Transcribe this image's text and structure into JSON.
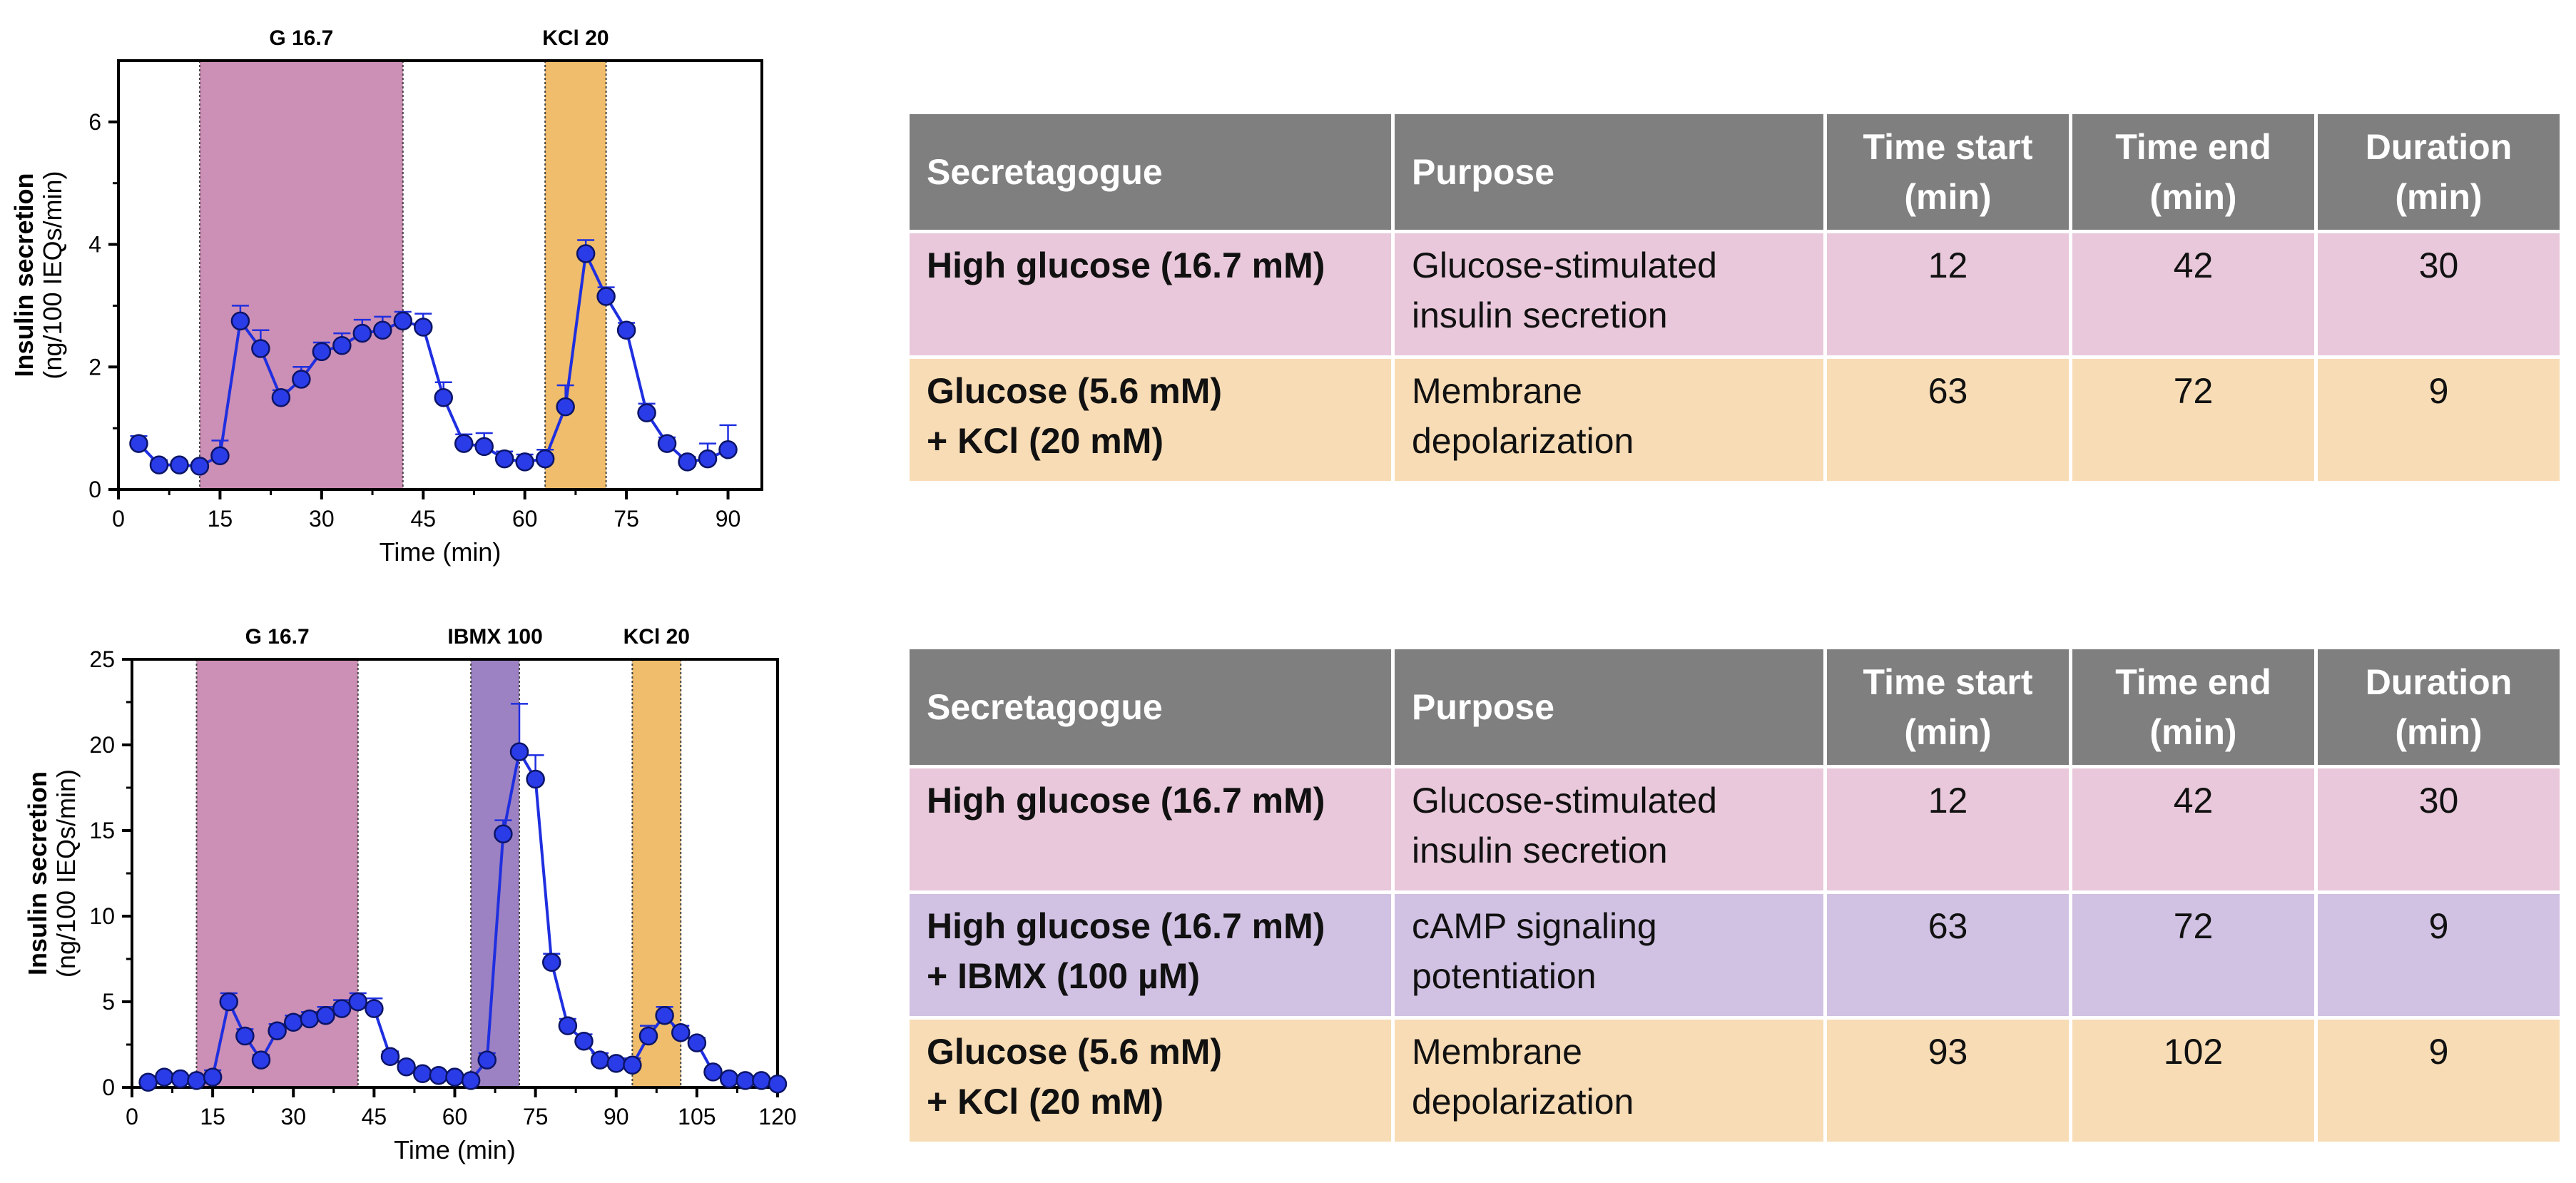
{
  "colors": {
    "glucose_band": "#cc8fb5",
    "kcl_band": "#efbd6b",
    "ibmx_band": "#9c82c3",
    "series": "#1f2fe0",
    "series_marker": "#2a3be8",
    "table_header": "#7f7f7f",
    "row_glucose": "#e8c8da",
    "row_ibmx": "#d1c1e3",
    "row_kcl": "#f8dcb5"
  },
  "chart_data": [
    {
      "type": "line",
      "xlabel": "Time (min)",
      "ylabel": "Insulin secretion",
      "ylabel_sub": "(ng/100 IEQs/min)",
      "xlim": [
        0,
        95
      ],
      "ylim": [
        0,
        7
      ],
      "xticks": [
        "0",
        "15",
        "30",
        "45",
        "60",
        "75",
        "90"
      ],
      "yticks": [
        "0",
        "2",
        "4",
        "6"
      ],
      "bands": [
        {
          "label": "G 16.7",
          "start": 12,
          "end": 42,
          "color": "#cc8fb5"
        },
        {
          "label": "KCl 20",
          "start": 63,
          "end": 72,
          "color": "#efbd6b"
        }
      ],
      "series": [
        {
          "x": [
            3,
            6,
            9,
            12,
            15,
            18,
            21,
            24,
            27,
            30,
            33,
            36,
            39,
            42,
            45,
            48,
            51,
            54,
            57,
            60,
            63,
            66,
            69,
            72,
            75,
            78,
            81,
            84,
            87,
            90
          ],
          "y": [
            0.75,
            0.4,
            0.4,
            0.38,
            0.55,
            2.75,
            2.3,
            1.5,
            1.8,
            2.25,
            2.35,
            2.55,
            2.6,
            2.75,
            2.65,
            1.5,
            0.75,
            0.7,
            0.5,
            0.45,
            0.5,
            1.35,
            3.85,
            3.15,
            2.6,
            1.25,
            0.75,
            0.45,
            0.5,
            0.65
          ],
          "err": [
            0.12,
            0.08,
            0.06,
            0.06,
            0.25,
            0.25,
            0.3,
            0.12,
            0.2,
            0.15,
            0.2,
            0.22,
            0.22,
            0.15,
            0.22,
            0.25,
            0.15,
            0.22,
            0.12,
            0.12,
            0.15,
            0.35,
            0.22,
            0.15,
            0.12,
            0.15,
            0.1,
            0.08,
            0.25,
            0.4
          ]
        }
      ]
    },
    {
      "type": "line",
      "xlabel": "Time (min)",
      "ylabel": "Insulin secretion",
      "ylabel_sub": "(ng/100 IEQs/min)",
      "xlim": [
        0,
        120
      ],
      "ylim": [
        0,
        25
      ],
      "xticks": [
        "0",
        "15",
        "30",
        "45",
        "60",
        "75",
        "90",
        "105",
        "120"
      ],
      "yticks": [
        "0",
        "5",
        "10",
        "15",
        "20",
        "25"
      ],
      "bands": [
        {
          "label": "G 16.7",
          "start": 12,
          "end": 42,
          "color": "#cc8fb5"
        },
        {
          "label": "IBMX 100",
          "start": 63,
          "end": 72,
          "color": "#9c82c3"
        },
        {
          "label": "KCl 20",
          "start": 93,
          "end": 102,
          "color": "#efbd6b"
        }
      ],
      "series": [
        {
          "x": [
            3,
            6,
            9,
            12,
            15,
            18,
            21,
            24,
            27,
            30,
            33,
            36,
            39,
            42,
            45,
            48,
            51,
            54,
            57,
            60,
            63,
            66,
            69,
            72,
            75,
            78,
            81,
            84,
            87,
            90,
            93,
            96,
            99,
            102,
            105,
            108,
            111,
            114,
            117,
            120
          ],
          "y": [
            0.3,
            0.6,
            0.5,
            0.4,
            0.6,
            5.0,
            3.0,
            1.6,
            3.3,
            3.8,
            4.0,
            4.2,
            4.6,
            5.0,
            4.6,
            1.8,
            1.2,
            0.8,
            0.7,
            0.6,
            0.4,
            1.6,
            14.8,
            19.6,
            18.0,
            7.3,
            3.6,
            2.7,
            1.6,
            1.4,
            1.3,
            3.0,
            4.2,
            3.2,
            2.6,
            0.9,
            0.5,
            0.4,
            0.4,
            0.2
          ]
        }
      ],
      "err_indices": {
        "highlight": [
          22,
          23,
          24
        ]
      },
      "err": [
        0.2,
        0.2,
        0.2,
        0.2,
        0.4,
        0.5,
        0.4,
        0.3,
        0.4,
        0.4,
        0.4,
        0.5,
        0.5,
        0.5,
        0.6,
        0.3,
        0.2,
        0.2,
        0.2,
        0.2,
        0.2,
        0.4,
        0.8,
        2.8,
        1.4,
        0.5,
        0.4,
        0.4,
        0.4,
        0.3,
        0.4,
        0.6,
        0.5,
        0.4,
        0.3,
        0.2,
        0.2,
        0.2,
        0.2,
        0.2
      ]
    }
  ],
  "tables": [
    {
      "headers": {
        "secretagogue": "Secretagogue",
        "purpose": "Purpose",
        "start_a": "Time start",
        "start_b": "(min)",
        "end_a": "Time end",
        "end_b": "(min)",
        "dur_a": "Duration",
        "dur_b": "(min)"
      },
      "rows": [
        {
          "sec1": "High glucose (16.7 mM)",
          "sec2": "",
          "pur1": "Glucose-stimulated",
          "pur2": "insulin secretion",
          "start": "12",
          "end": "42",
          "dur": "30"
        },
        {
          "sec1": "Glucose (5.6 mM)",
          "sec2": "+ KCl (20 mM)",
          "pur1": "Membrane",
          "pur2": "depolarization",
          "start": "63",
          "end": "72",
          "dur": "9"
        }
      ]
    },
    {
      "headers": {
        "secretagogue": "Secretagogue",
        "purpose": "Purpose",
        "start_a": "Time start",
        "start_b": "(min)",
        "end_a": "Time end",
        "end_b": "(min)",
        "dur_a": "Duration",
        "dur_b": "(min)"
      },
      "rows": [
        {
          "sec1": "High glucose (16.7 mM)",
          "sec2": "",
          "pur1": "Glucose-stimulated",
          "pur2": "insulin secretion",
          "start": "12",
          "end": "42",
          "dur": "30"
        },
        {
          "sec1": "High glucose (16.7 mM)",
          "sec2": "+ IBMX (100 µM)",
          "pur1": "cAMP signaling",
          "pur2": "potentiation",
          "start": "63",
          "end": "72",
          "dur": "9"
        },
        {
          "sec1": "Glucose (5.6 mM)",
          "sec2": "+ KCl (20 mM)",
          "pur1": "Membrane",
          "pur2": "depolarization",
          "start": "93",
          "end": "102",
          "dur": "9"
        }
      ]
    }
  ]
}
